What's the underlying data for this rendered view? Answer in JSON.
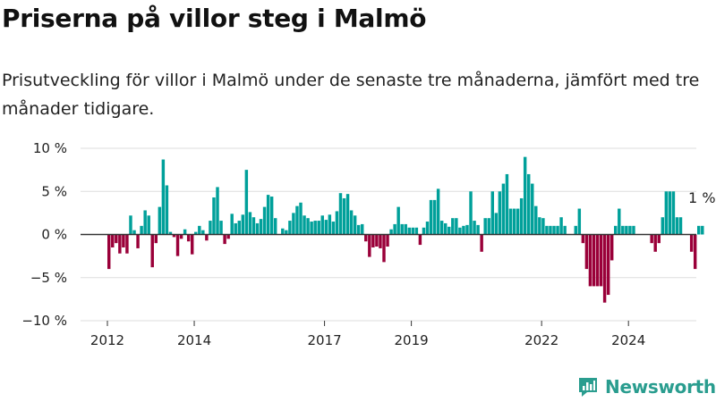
{
  "header": {
    "title": "Priserna på villor steg i Malmö",
    "subtitle": "Prisutveckling för villor i Malmö under de senaste tre månaderna, jämfört med tre månader tidigare."
  },
  "brand": {
    "name": "Newsworthy",
    "icon": "bar-chart-logo-icon"
  },
  "colors": {
    "positive": "#00a09a",
    "negative": "#9a0039",
    "grid": "#dddddd",
    "axis": "#333333",
    "brand": "#2a9d8f"
  },
  "chart_data": {
    "type": "bar",
    "ylim": [
      -10,
      10
    ],
    "y_ticks": [
      10,
      5,
      0,
      -5,
      -10
    ],
    "y_tick_labels": [
      "10 %",
      "5 %",
      "0 %",
      "−5 %",
      "−10 %"
    ],
    "x_tick_labels": [
      {
        "label": "2012",
        "at": "2012-01"
      },
      {
        "label": "2014",
        "at": "2014-01"
      },
      {
        "label": "2017",
        "at": "2017-01"
      },
      {
        "label": "2019",
        "at": "2019-01"
      },
      {
        "label": "2022",
        "at": "2022-01"
      },
      {
        "label": "2024",
        "at": "2024-01"
      }
    ],
    "start_month": "2012-01",
    "values": [
      -4,
      -1.5,
      -1,
      -2.2,
      -1.5,
      -2.2,
      2.2,
      0.5,
      -1.6,
      1,
      2.8,
      2.2,
      -3.8,
      -1,
      3.2,
      8.7,
      5.7,
      0.3,
      -0.3,
      -2.5,
      -0.5,
      0.6,
      -0.8,
      -2.3,
      0.3,
      1,
      0.5,
      -0.7,
      1.6,
      4.3,
      5.5,
      1.6,
      -1.1,
      -0.5,
      2.4,
      1.3,
      1.6,
      2.3,
      7.5,
      2.6,
      2,
      1.3,
      1.8,
      3.2,
      4.6,
      4.4,
      1.9,
      0,
      0.7,
      0.5,
      1.6,
      2.5,
      3.3,
      3.7,
      2.2,
      1.9,
      1.5,
      1.6,
      1.6,
      2.2,
      1.7,
      2.3,
      1.5,
      2.7,
      4.8,
      4.2,
      4.7,
      2.8,
      2.2,
      1.1,
      1.2,
      -0.8,
      -2.6,
      -1.5,
      -1.4,
      -1.6,
      -3.2,
      -1.4,
      0.6,
      1.2,
      3.2,
      1.2,
      1.2,
      0.8,
      0.8,
      0.8,
      -1.2,
      0.8,
      1.5,
      4,
      4,
      5.3,
      1.6,
      1.3,
      0.9,
      1.9,
      1.9,
      0.8,
      1,
      1.1,
      5,
      1.6,
      1.1,
      -2,
      1.9,
      1.9,
      5,
      2.5,
      5,
      5.9,
      7,
      3,
      3,
      3,
      4.2,
      9,
      7,
      5.9,
      3.3,
      2,
      1.9,
      1,
      1,
      1,
      1,
      2,
      1,
      0,
      0,
      1,
      3,
      -1,
      -4,
      -6,
      -6,
      -6,
      -6,
      -7.9,
      -7,
      -3,
      1,
      3,
      1,
      1,
      1,
      1,
      0,
      0,
      0,
      0,
      -1,
      -2,
      -1,
      2,
      5,
      5,
      5,
      2,
      2,
      0,
      0,
      -2,
      -4,
      1,
      1
    ],
    "annotation": {
      "text": "1 %",
      "at": "latest"
    }
  }
}
